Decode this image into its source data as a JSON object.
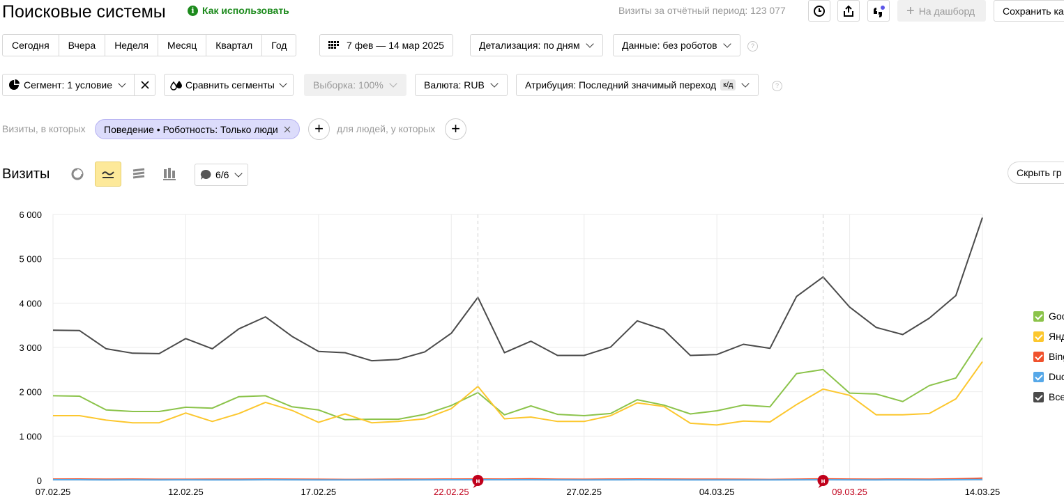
{
  "header": {
    "title": "Поисковые системы",
    "how_to_use": "Как использовать",
    "visits_period": "Визиты за отчётный период: 123 077",
    "to_dashboard": "На дашборд",
    "save": "Сохранить ка"
  },
  "periods": [
    "Сегодня",
    "Вчера",
    "Неделя",
    "Месяц",
    "Квартал",
    "Год"
  ],
  "date_range": "7 фев — 14 мар 2025",
  "detail": "Детализация: по дням",
  "data_filter": "Данные: без роботов",
  "segment": "Сегмент: 1 условие",
  "compare": "Сравнить сегменты",
  "sample": "Выборка: 100%",
  "currency": "Валюта: RUB",
  "attribution": "Атрибуция: Последний значимый переход",
  "attribution_badge": "к/д",
  "filter": {
    "visits_prefix": "Визиты, в которых",
    "chip": "Поведение • Роботность: Только люди",
    "people_prefix": "для людей, у которых"
  },
  "chart_header": {
    "title": "Визиты",
    "notes": "6/6",
    "hide": "Скрыть гр"
  },
  "colors": {
    "accent_green": "#1c8a1c",
    "google": "#8bc34a",
    "yandex": "#fcc72e",
    "bing": "#f0522d",
    "duckduckgo": "#56a8e8",
    "total": "#4a4a4a",
    "annotation": "#c0001b"
  },
  "chart_data": {
    "type": "line",
    "x": [
      "07.02.25",
      "08.02.25",
      "09.02.25",
      "10.02.25",
      "11.02.25",
      "12.02.25",
      "13.02.25",
      "14.02.25",
      "15.02.25",
      "16.02.25",
      "17.02.25",
      "18.02.25",
      "19.02.25",
      "20.02.25",
      "21.02.25",
      "22.02.25",
      "23.02.25",
      "24.02.25",
      "25.02.25",
      "26.02.25",
      "27.02.25",
      "28.02.25",
      "01.03.25",
      "02.03.25",
      "03.03.25",
      "04.03.25",
      "05.03.25",
      "06.03.25",
      "07.03.25",
      "08.03.25",
      "09.03.25",
      "10.03.25",
      "11.03.25",
      "12.03.25",
      "13.03.25",
      "14.03.25"
    ],
    "xtick_labels": [
      "07.02.25",
      "12.02.25",
      "17.02.25",
      "22.02.25",
      "27.02.25",
      "04.03.25",
      "09.03.25",
      "14.03.25"
    ],
    "xtick_red": [
      "22.02.25",
      "09.03.25"
    ],
    "annotations": [
      {
        "x": "23.02.25",
        "label": "н"
      },
      {
        "x": "08.03.25",
        "label": "н"
      }
    ],
    "ylim": [
      0,
      6000
    ],
    "yticks": [
      "0",
      "1 000",
      "2 000",
      "3 000",
      "4 000",
      "5 000",
      "6 000"
    ],
    "series": [
      {
        "name": "Google",
        "legend_label": "Goo",
        "color": "#8bc34a",
        "values": [
          1910,
          1900,
          1590,
          1555,
          1555,
          1650,
          1630,
          1890,
          1910,
          1660,
          1590,
          1370,
          1380,
          1380,
          1490,
          1690,
          1980,
          1480,
          1680,
          1490,
          1460,
          1510,
          1820,
          1700,
          1500,
          1570,
          1700,
          1660,
          2410,
          2500,
          1970,
          1950,
          1780,
          2140,
          2310,
          3220
        ]
      },
      {
        "name": "Яндекс",
        "legend_label": "Янд",
        "color": "#fcc72e",
        "values": [
          1460,
          1460,
          1360,
          1300,
          1300,
          1520,
          1330,
          1510,
          1760,
          1580,
          1310,
          1500,
          1300,
          1330,
          1390,
          1620,
          2120,
          1390,
          1430,
          1330,
          1330,
          1460,
          1750,
          1670,
          1290,
          1250,
          1340,
          1320,
          1710,
          2060,
          1920,
          1480,
          1480,
          1510,
          1840,
          2680
        ]
      },
      {
        "name": "Bing",
        "legend_label": "Bing",
        "color": "#f0522d",
        "values": [
          30,
          32,
          28,
          30,
          25,
          25,
          28,
          26,
          30,
          28,
          25,
          22,
          24,
          26,
          28,
          30,
          32,
          30,
          35,
          28,
          25,
          30,
          32,
          30,
          28,
          26,
          25,
          22,
          28,
          35,
          30,
          28,
          30,
          28,
          35,
          50
        ]
      },
      {
        "name": "DuckDuckGo",
        "legend_label": "Duc",
        "color": "#56a8e8",
        "values": [
          15,
          15,
          12,
          14,
          12,
          14,
          12,
          13,
          15,
          14,
          12,
          11,
          12,
          13,
          14,
          15,
          16,
          15,
          16,
          14,
          12,
          14,
          15,
          14,
          13,
          12,
          12,
          11,
          14,
          16,
          14,
          13,
          14,
          13,
          16,
          20
        ]
      },
      {
        "name": "Всего",
        "legend_label": "Все",
        "color": "#4a4a4a",
        "values": [
          3390,
          3380,
          2970,
          2870,
          2860,
          3200,
          2970,
          3420,
          3690,
          3250,
          2910,
          2880,
          2700,
          2730,
          2900,
          3320,
          4130,
          2880,
          3140,
          2820,
          2820,
          3010,
          3600,
          3400,
          2820,
          2840,
          3070,
          2980,
          4150,
          4590,
          3910,
          3450,
          3290,
          3660,
          4170,
          5930
        ]
      }
    ]
  }
}
